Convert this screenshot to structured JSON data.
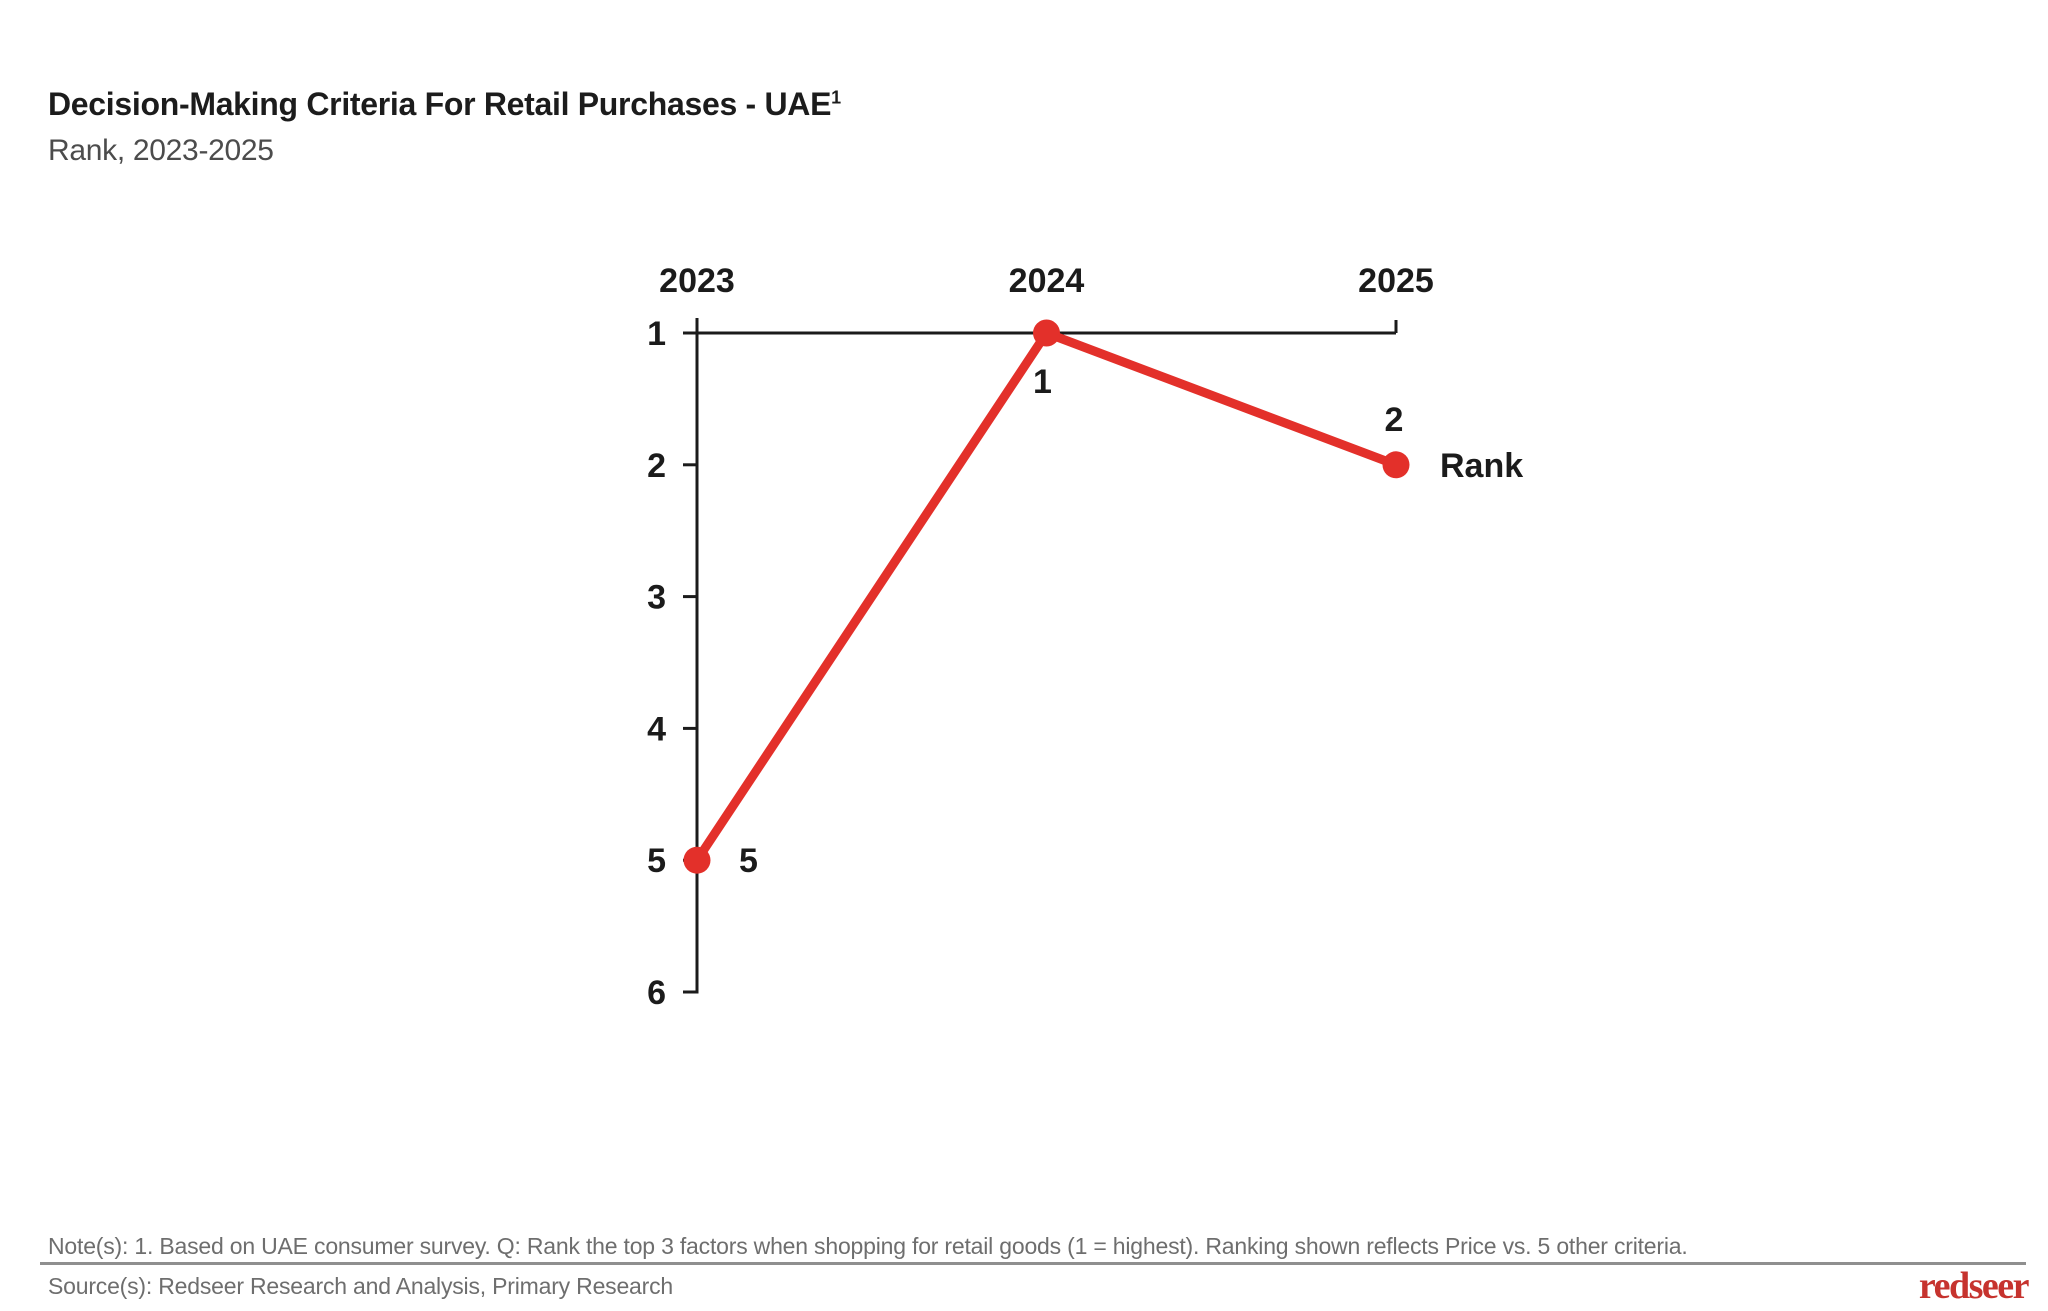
{
  "header": {
    "title": "Decision-Making Criteria For Retail Purchases - UAE",
    "title_superscript": "1",
    "subtitle": "Rank, 2023-2025"
  },
  "chart_data": {
    "type": "line",
    "title": "Decision-Making Criteria For Retail Purchases - UAE (note 1)",
    "categories": [
      "2023",
      "2024",
      "2025"
    ],
    "series": [
      {
        "name": "Rank",
        "values": [
          5,
          1,
          2
        ],
        "color": "#E3302A"
      }
    ],
    "data_labels": [
      "5",
      "1",
      "2"
    ],
    "xlabel": "",
    "ylabel": "Rank",
    "y_axis": {
      "min": 1,
      "max": 6,
      "ticks": [
        "1",
        "2",
        "3",
        "4",
        "5",
        "6"
      ],
      "inverted": true
    },
    "grid": false,
    "legend_position": "right-of-last-point",
    "axis_color": "#1B1B1B"
  },
  "footer": {
    "note": "Note(s): 1. Based on UAE consumer survey. Q: Rank the top 3 factors when shopping for retail goods (1 = highest). Ranking shown reflects Price vs. 5 other criteria.",
    "source": "Source(s): Redseer Research and Analysis, Primary Research"
  },
  "logo": {
    "text": "redseer",
    "color": "#C6332E"
  },
  "colors": {
    "accent_red": "#E3302A",
    "logo_red": "#C6332E",
    "axis": "#1B1B1B",
    "muted_text": "#6E6E6E"
  }
}
